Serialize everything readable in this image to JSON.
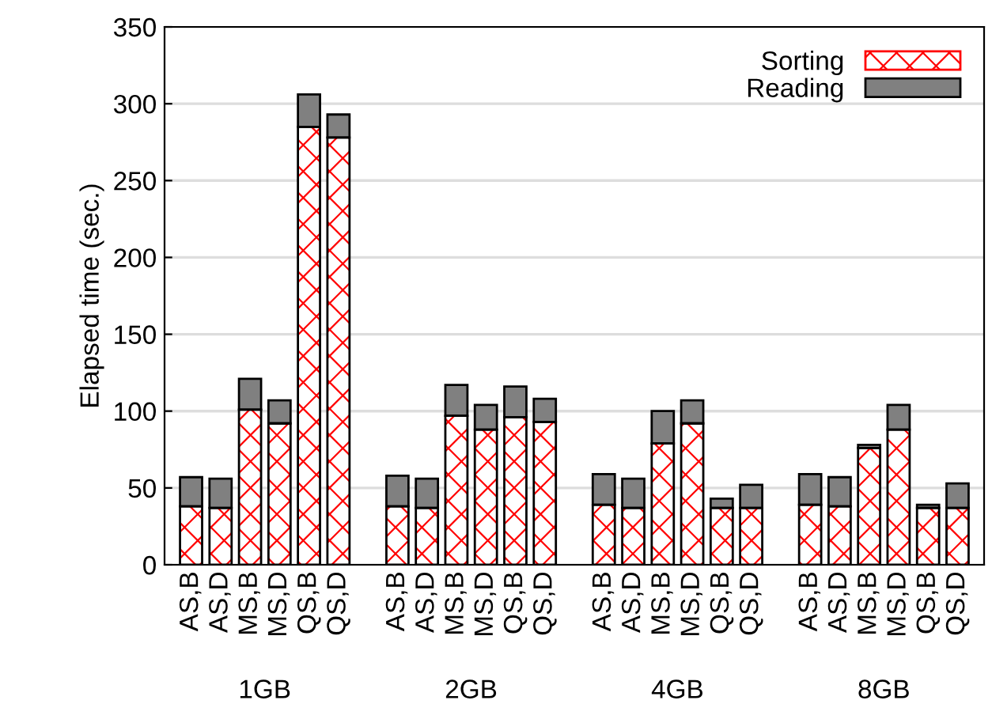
{
  "chart_data": {
    "type": "bar",
    "stacked": true,
    "ylabel": "Elapsed time (sec.)",
    "categories": [
      "AS,B",
      "AS,D",
      "MS,B",
      "MS,D",
      "QS,B",
      "QS,D",
      "AS,B",
      "AS,D",
      "MS,B",
      "MS,D",
      "QS,B",
      "QS,D",
      "AS,B",
      "AS,D",
      "MS,B",
      "MS,D",
      "QS,B",
      "QS,D",
      "AS,B",
      "AS,D",
      "MS,B",
      "MS,D",
      "QS,B",
      "QS,D"
    ],
    "series": [
      {
        "name": "Sorting",
        "color": "#ff0000",
        "values": [
          38,
          37,
          101,
          92,
          285,
          278,
          38,
          37,
          97,
          88,
          96,
          93,
          39,
          37,
          79,
          92,
          37,
          37,
          39,
          38,
          76,
          88,
          37,
          37
        ]
      },
      {
        "name": "Reading",
        "color": "#808080",
        "values": [
          19,
          19,
          20,
          15,
          21,
          15,
          20,
          19,
          20,
          16,
          20,
          15,
          20,
          19,
          21,
          15,
          6,
          15,
          20,
          19,
          2,
          16,
          2,
          16
        ]
      }
    ],
    "ylim": [
      0,
      350
    ],
    "yticks": [
      0,
      50,
      100,
      150,
      200,
      250,
      300,
      350
    ],
    "grid": "y",
    "legend": "top right",
    "annotations": [
      "1GB",
      "2GB",
      "4GB",
      "8GB"
    ]
  }
}
